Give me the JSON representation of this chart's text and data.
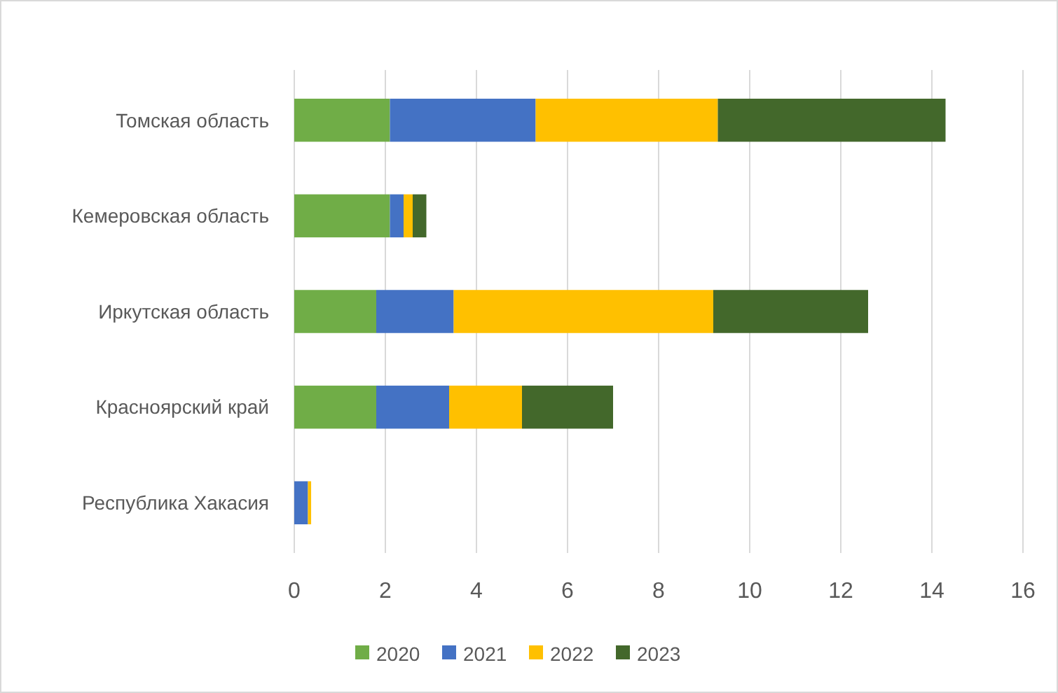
{
  "chart_data": {
    "type": "bar",
    "orientation": "horizontal",
    "stacked": true,
    "categories": [
      "Томская область",
      "Кемеровская область",
      "Иркутская область",
      "Красноярский край",
      "Республика Хакасия"
    ],
    "series": [
      {
        "name": "2020",
        "color": "#70ad47",
        "values": [
          2.1,
          2.1,
          1.8,
          1.8,
          0
        ]
      },
      {
        "name": "2021",
        "color": "#4472c4",
        "values": [
          3.2,
          0.3,
          1.7,
          1.6,
          0.3
        ]
      },
      {
        "name": "2022",
        "color": "#ffc000",
        "values": [
          4.0,
          0.2,
          5.7,
          1.6,
          0.07
        ]
      },
      {
        "name": "2023",
        "color": "#43682b",
        "values": [
          5.0,
          0.3,
          3.4,
          2.0,
          0
        ]
      }
    ],
    "xlim": [
      0,
      16
    ],
    "xticks": [
      0,
      2,
      4,
      6,
      8,
      10,
      12,
      14,
      16
    ],
    "grid": "x",
    "legend": "bottom"
  }
}
